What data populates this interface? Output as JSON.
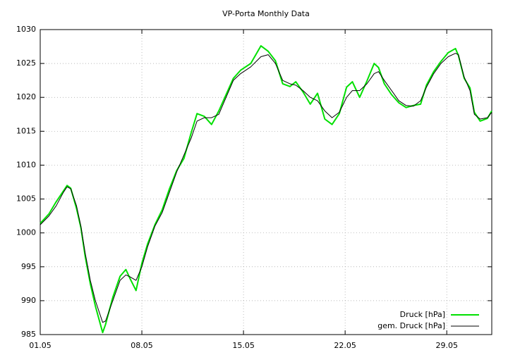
{
  "chart_data": {
    "type": "line",
    "title": "VP-Porta Monthly Data",
    "x": [
      0,
      0.6,
      1.1,
      1.6,
      1.85,
      2.1,
      2.5,
      2.8,
      3.1,
      3.45,
      3.8,
      4.3,
      4.5,
      5.0,
      5.5,
      5.9,
      6.2,
      6.6,
      7.0,
      7.4,
      7.9,
      8.4,
      8.9,
      9.4,
      9.9,
      10.4,
      10.8,
      11.3,
      11.8,
      12.3,
      12.8,
      13.3,
      13.8,
      14.5,
      15.2,
      15.7,
      16.2,
      16.7,
      17.2,
      17.6,
      18.1,
      18.6,
      19.1,
      19.6,
      20.1,
      20.6,
      21.1,
      21.5,
      22.0,
      22.5,
      23.0,
      23.3,
      23.7,
      24.2,
      24.7,
      25.2,
      25.7,
      26.2,
      26.6,
      27.1,
      27.6,
      28.1,
      28.6,
      28.8,
      29.2,
      29.6,
      29.9,
      30.3,
      30.8,
      31.1
    ],
    "series": [
      {
        "name": "Druck [hPa]",
        "color": "#00e000",
        "width": 2,
        "values": [
          1001.4,
          1002.8,
          1004.6,
          1006.2,
          1007,
          1006.6,
          1003.6,
          1000.8,
          996.5,
          992.5,
          989.2,
          985.3,
          986.5,
          990.5,
          993.6,
          994.6,
          993.2,
          991.5,
          995.5,
          998.4,
          1001.2,
          1003.4,
          1006.5,
          1009.2,
          1011,
          1014.8,
          1017.6,
          1017.2,
          1016,
          1018,
          1020.4,
          1022.8,
          1024,
          1025,
          1027.6,
          1026.8,
          1025.4,
          1022,
          1021.6,
          1022.3,
          1020.8,
          1019,
          1020.6,
          1016.8,
          1016,
          1017.6,
          1021.5,
          1022.3,
          1020,
          1022.4,
          1025,
          1024.4,
          1022,
          1020.4,
          1019.2,
          1018.5,
          1018.8,
          1019,
          1021.8,
          1023.8,
          1025.3,
          1026.6,
          1027.2,
          1026.2,
          1022.8,
          1021.4,
          1017.8,
          1016.5,
          1016.9,
          1018
        ]
      },
      {
        "name": "gem. Druck [hPa]",
        "color": "#000000",
        "width": 1,
        "values": [
          1001.2,
          1002.5,
          1004,
          1006,
          1006.8,
          1006.5,
          1004,
          1001,
          997,
          993,
          990,
          986.8,
          987,
          990,
          993,
          993.8,
          993.5,
          993,
          995,
          998,
          1001,
          1003,
          1006,
          1009,
          1011.5,
          1014,
          1016.5,
          1017,
          1017,
          1017.5,
          1020,
          1022.5,
          1023.5,
          1024.5,
          1026,
          1026.3,
          1025,
          1022.5,
          1022,
          1021.8,
          1021,
          1020,
          1019.5,
          1018,
          1017,
          1017.8,
          1020,
          1021,
          1021,
          1022,
          1023.5,
          1023.8,
          1022.5,
          1021,
          1019.5,
          1018.8,
          1018.7,
          1019.5,
          1021.5,
          1023.5,
          1025,
          1026,
          1026.5,
          1026.3,
          1023,
          1021,
          1017.5,
          1016.8,
          1017,
          1017.8
        ]
      }
    ],
    "xlim": [
      0,
      31.1
    ],
    "xticks": [
      {
        "value": 0,
        "label": "01.05"
      },
      {
        "value": 7,
        "label": "08.05"
      },
      {
        "value": 14,
        "label": "15.05"
      },
      {
        "value": 21,
        "label": "22.05"
      },
      {
        "value": 28,
        "label": "29.05"
      }
    ],
    "ylim": [
      985,
      1030
    ],
    "yticks": [
      985,
      990,
      995,
      1000,
      1005,
      1010,
      1015,
      1020,
      1025,
      1030
    ],
    "grid": true,
    "legend": "bottom-right"
  }
}
